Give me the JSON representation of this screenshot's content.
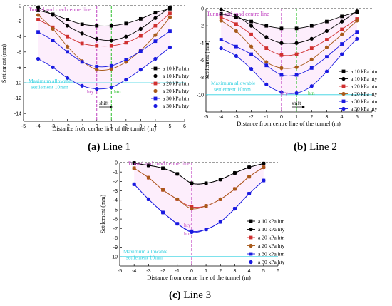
{
  "chart_data": [
    {
      "type": "line",
      "title": "",
      "xlabel": "Distance from centre line of the tunnel (m)",
      "ylabel": "Settlement (mm)",
      "xlim": [
        -5,
        6
      ],
      "ylim": [
        -15,
        0
      ],
      "xticks": [
        "-5",
        "-4",
        "-3",
        "-2",
        "-1",
        "0",
        "1",
        "2",
        "3",
        "4",
        "5",
        "6"
      ],
      "yticks": [
        "0",
        "-2",
        "-4",
        "-6",
        "-8",
        "-10",
        "-12",
        "-14"
      ],
      "legend_position": "right",
      "annotations": {
        "centre_line": "Tunnel and road centre line",
        "allowable_1": "Maximum allowable",
        "allowable_2": "settlement 10mm",
        "hty": "hty",
        "htn": "htn",
        "shift": "shift"
      },
      "reference_lines": {
        "allowable_settlement": -10,
        "centre_x": 0,
        "shifted_centre_x": 1
      },
      "series": [
        {
          "name": "a 10 kPa htn",
          "color": "#000000",
          "marker": "square",
          "x": [
            -4,
            -3,
            -2,
            -1,
            0,
            1,
            2,
            3,
            4,
            5
          ],
          "y": [
            -0.6,
            -1.1,
            -1.8,
            -2.4,
            -2.6,
            -2.6,
            -2.3,
            -1.7,
            -0.9,
            -0.4
          ]
        },
        {
          "name": "a 10 kPa hty",
          "color": "#000000",
          "marker": "circle",
          "x": [
            -4,
            -3,
            -2,
            -1,
            0,
            1,
            2,
            3,
            4,
            5
          ],
          "y": [
            -0.2,
            -1.2,
            -2.6,
            -3.6,
            -4.3,
            -4.5,
            -4.0,
            -3.0,
            -1.6,
            -0.2
          ]
        },
        {
          "name": "a 20 kPa htn",
          "color": "#d03030",
          "marker": "square",
          "x": [
            -4,
            -3,
            -2,
            -1,
            0,
            1,
            2,
            3,
            4,
            5
          ],
          "y": [
            -1.8,
            -2.8,
            -4.0,
            -4.9,
            -5.2,
            -5.2,
            -4.8,
            -3.9,
            -2.6,
            -1.0
          ]
        },
        {
          "name": "a 20 kPa hty",
          "color": "#a85a1a",
          "marker": "circle",
          "x": [
            -4,
            -3,
            -2,
            -1,
            0,
            1,
            2,
            3,
            4,
            5
          ],
          "y": [
            -1.2,
            -3.0,
            -5.3,
            -7.2,
            -8.3,
            -8.2,
            -7.3,
            -5.8,
            -3.8,
            -1.5
          ]
        },
        {
          "name": "a 30 kPa htn",
          "color": "#1a1ae0",
          "marker": "square",
          "x": [
            -4,
            -3,
            -2,
            -1,
            0,
            1,
            2,
            3,
            4,
            5
          ],
          "y": [
            -3.4,
            -4.5,
            -6.0,
            -7.3,
            -7.9,
            -7.8,
            -7.0,
            -5.9,
            -4.6,
            -3.3
          ]
        },
        {
          "name": "a 30 kPa hty",
          "color": "#1a1ae0",
          "marker": "circle",
          "x": [
            -4,
            -3,
            -2,
            -1,
            0,
            1,
            2,
            3,
            4,
            5
          ],
          "y": [
            -6.9,
            -8.0,
            -9.4,
            -10.4,
            -10.8,
            -10.6,
            -9.6,
            -8.3,
            -6.9,
            -5.4
          ]
        }
      ]
    },
    {
      "type": "line",
      "title": "",
      "xlabel": "Distance from centre line of the tunnel (m)",
      "ylabel": "Settlement (mm)",
      "xlim": [
        -5,
        6
      ],
      "ylim": [
        -12,
        0
      ],
      "xticks": [
        "-5",
        "-4",
        "-3",
        "-2",
        "-1",
        "0",
        "1",
        "2",
        "3",
        "4",
        "5",
        "6"
      ],
      "yticks": [
        "0",
        "-2",
        "-4",
        "-6",
        "-8",
        "-10"
      ],
      "legend_position": "right",
      "annotations": {
        "centre_line": "Tunnel and road centre line",
        "allowable_1": "Maximum allowable",
        "allowable_2": "settlement 10mm",
        "hty": "hty",
        "htn": "htn",
        "shift": "shift"
      },
      "reference_lines": {
        "allowable_settlement": -10,
        "centre_x": 0,
        "shifted_centre_x": 1
      },
      "series": [
        {
          "name": "a 10 kPa htn",
          "color": "#000000",
          "marker": "square",
          "x": [
            -4,
            -3,
            -2,
            -1,
            0,
            1,
            2,
            3,
            4,
            5
          ],
          "y": [
            -0.6,
            -1.0,
            -1.5,
            -2.0,
            -2.3,
            -2.3,
            -2.0,
            -1.5,
            -0.9,
            -0.4
          ]
        },
        {
          "name": "a 10 kPa hty",
          "color": "#000000",
          "marker": "circle",
          "x": [
            -4,
            -3,
            -2,
            -1,
            0,
            1,
            2,
            3,
            4,
            5
          ],
          "y": [
            -0.1,
            -0.8,
            -2.0,
            -3.3,
            -4.0,
            -4.0,
            -3.5,
            -2.6,
            -1.5,
            -0.3
          ]
        },
        {
          "name": "a 20 kPa htn",
          "color": "#d03030",
          "marker": "square",
          "x": [
            -4,
            -3,
            -2,
            -1,
            0,
            1,
            2,
            3,
            4,
            5
          ],
          "y": [
            -1.0,
            -1.8,
            -3.0,
            -4.6,
            -5.4,
            -5.3,
            -4.6,
            -3.6,
            -2.4,
            -1.2
          ]
        },
        {
          "name": "a 20 kPa hty",
          "color": "#a85a1a",
          "marker": "circle",
          "x": [
            -4,
            -3,
            -2,
            -1,
            0,
            1,
            2,
            3,
            4,
            5
          ],
          "y": [
            -1.4,
            -2.6,
            -4.4,
            -6.2,
            -6.9,
            -6.8,
            -5.9,
            -4.5,
            -3.0,
            -1.4
          ]
        },
        {
          "name": "a 30 kPa htn",
          "color": "#1a1ae0",
          "marker": "square",
          "x": [
            -4,
            -3,
            -2,
            -1,
            0,
            1,
            2,
            3,
            4,
            5
          ],
          "y": [
            -3.6,
            -4.4,
            -5.3,
            -6.6,
            -7.7,
            -7.7,
            -6.9,
            -5.6,
            -4.1,
            -2.7
          ]
        },
        {
          "name": "a 30 kPa hty",
          "color": "#1a1ae0",
          "marker": "circle",
          "x": [
            -4,
            -3,
            -2,
            -1,
            0,
            1,
            2,
            3,
            4,
            5
          ],
          "y": [
            -4.6,
            -5.5,
            -7.0,
            -8.8,
            -9.7,
            -9.8,
            -9.0,
            -7.3,
            -5.3,
            -3.5
          ]
        }
      ]
    },
    {
      "type": "line",
      "title": "",
      "xlabel": "Distance from centre line of the tunnel (m)",
      "ylabel": "Settlement (mm)",
      "xlim": [
        -5,
        6
      ],
      "ylim": [
        -11,
        0
      ],
      "xticks": [
        "-5",
        "-4",
        "-3",
        "-2",
        "-1",
        "0",
        "1",
        "2",
        "3",
        "4",
        "5",
        "6"
      ],
      "yticks": [
        "0",
        "-1",
        "-2",
        "-3",
        "-4",
        "-5",
        "-6",
        "-7",
        "-8",
        "-9",
        "-10"
      ],
      "legend_position": "right",
      "annotations": {
        "centre_line": "Tunnel and road centre line",
        "allowable_1": "Maximum allowable",
        "allowable_2": "settlement 10mm",
        "hty": "hty",
        "htn": "htn"
      },
      "reference_lines": {
        "allowable_settlement": -10,
        "centre_x": 0
      },
      "series": [
        {
          "name": "a 10 kPa htn",
          "color": "#000000",
          "marker": "square",
          "x": [
            -4,
            -3,
            -2,
            -1,
            0,
            1,
            2,
            3,
            4,
            5
          ],
          "y": [
            -0.05,
            -0.3,
            -0.6,
            -1.2,
            -2.2,
            -2.2,
            -1.8,
            -1.1,
            -0.5,
            -0.1
          ]
        },
        {
          "name": "a 10 kPa hty",
          "color": "#000000",
          "marker": "circle",
          "x": [
            -4,
            -3,
            -2,
            -1,
            0,
            1,
            2,
            3,
            4,
            5
          ],
          "y": [
            -0.05,
            -0.3,
            -0.6,
            -1.2,
            -2.2,
            -2.2,
            -1.8,
            -1.1,
            -0.5,
            -0.1
          ]
        },
        {
          "name": "a 20 kPa htn",
          "color": "#d03030",
          "marker": "square",
          "x": [
            -4,
            -3,
            -2,
            -1,
            0,
            1,
            2,
            3,
            4,
            5
          ],
          "y": [
            -0.6,
            -1.6,
            -2.9,
            -3.9,
            -4.7,
            -4.6,
            -3.9,
            -2.8,
            -1.5,
            -0.5
          ]
        },
        {
          "name": "a 20 kPa hty",
          "color": "#a85a1a",
          "marker": "circle",
          "x": [
            -4,
            -3,
            -2,
            -1,
            0,
            1,
            2,
            3,
            4,
            5
          ],
          "y": [
            -0.6,
            -1.6,
            -2.9,
            -3.9,
            -4.9,
            -4.6,
            -3.9,
            -2.8,
            -1.5,
            -0.5
          ]
        },
        {
          "name": "a 30 kPa htn",
          "color": "#1a1ae0",
          "marker": "square",
          "x": [
            -4,
            -3,
            -2,
            -1,
            0,
            1,
            2,
            3,
            4,
            5
          ],
          "y": [
            -2.3,
            -3.9,
            -5.3,
            -6.5,
            -7.3,
            -7.1,
            -6.3,
            -4.9,
            -3.3,
            -1.9
          ]
        },
        {
          "name": "a 30 kPa hty",
          "color": "#1a1ae0",
          "marker": "circle",
          "x": [
            -4,
            -3,
            -2,
            -1,
            0,
            1,
            2,
            3,
            4,
            5
          ],
          "y": [
            -2.3,
            -3.9,
            -5.3,
            -6.5,
            -7.4,
            -7.1,
            -6.3,
            -4.9,
            -3.3,
            -1.9
          ]
        }
      ]
    }
  ],
  "captions": [
    {
      "tag": "(a)",
      "text": "Line 1"
    },
    {
      "tag": "(b)",
      "text": "Line 2"
    },
    {
      "tag": "(c)",
      "text": "Line 3"
    }
  ],
  "colors": {
    "centre_line": "#c040c0",
    "shift_line": "#30c030",
    "allowable_line": "#30d0e0",
    "band": "#f4a0f0"
  }
}
